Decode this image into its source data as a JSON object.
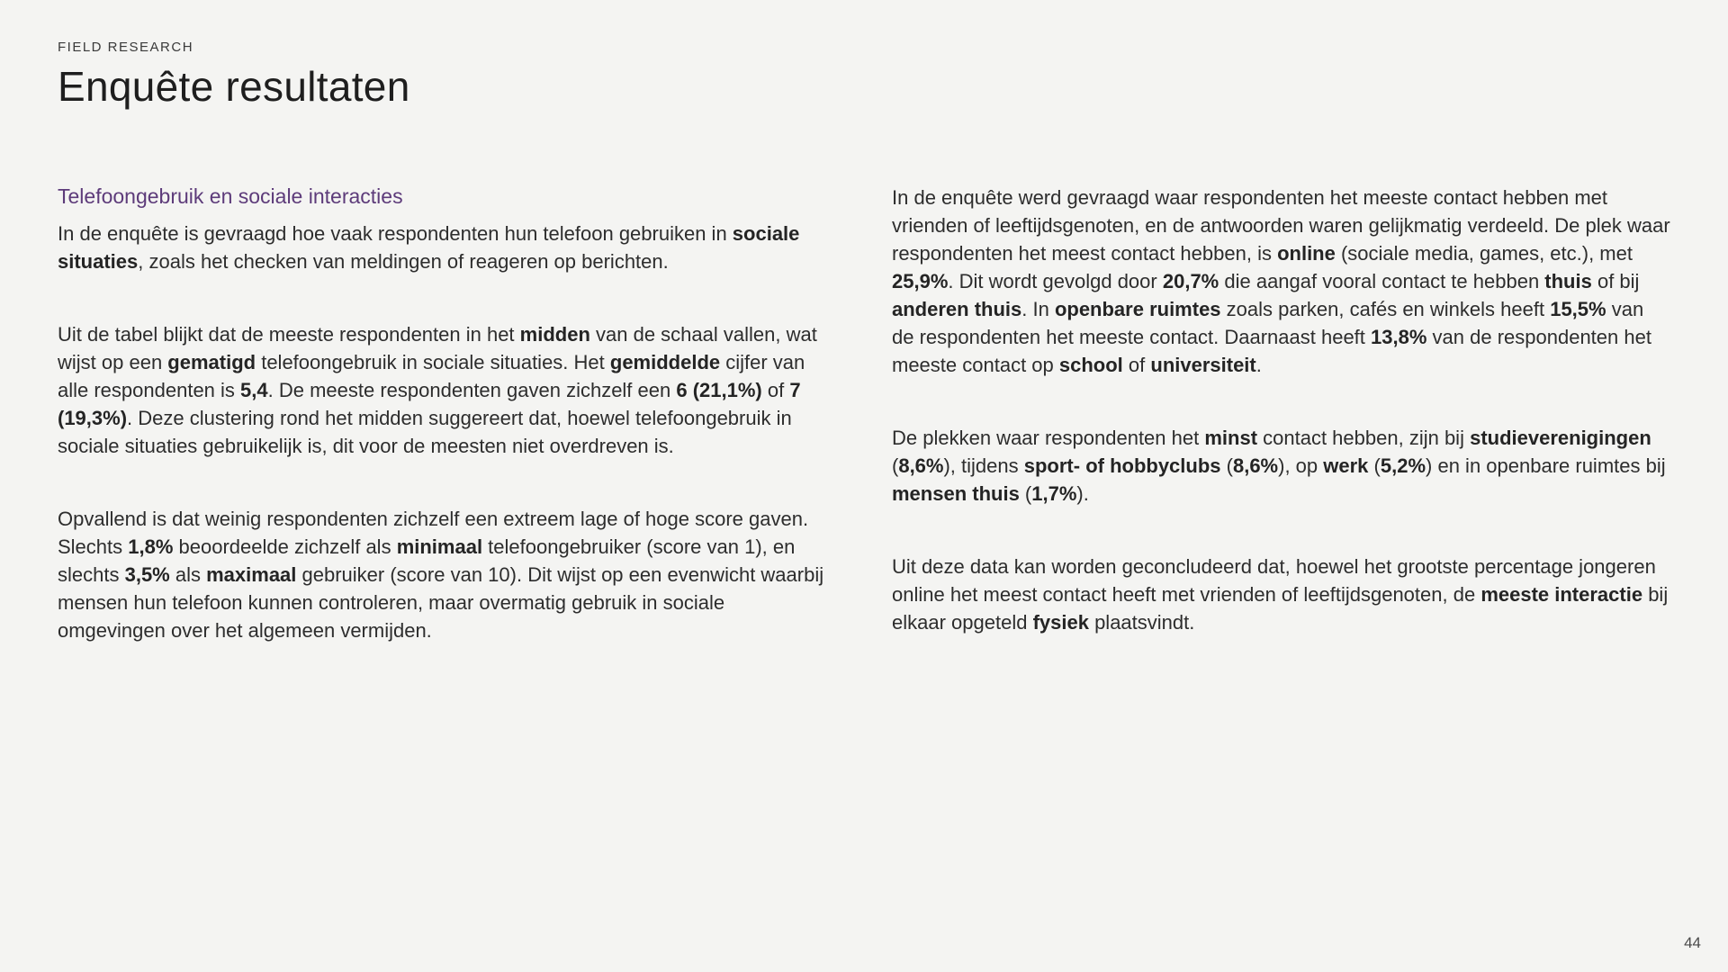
{
  "page": {
    "eyebrow": "FIELD RESEARCH",
    "title": "Enquête resultaten",
    "page_number": "44"
  },
  "colors": {
    "background": "#f4f4f2",
    "accent_purple": "#5d3b7a",
    "body_text": "#2d2d2d",
    "title_text": "#1e1e1e"
  },
  "left_column": {
    "subtitle": "Telefoongebruik en sociale interacties",
    "paragraphs": [
      [
        {
          "t": "In de enquête is gevraagd hoe vaak respondenten hun telefoon gebruiken in ",
          "b": false
        },
        {
          "t": "sociale situaties",
          "b": true
        },
        {
          "t": ", zoals het checken van meldingen of reageren op berichten.",
          "b": false
        }
      ],
      [
        {
          "t": "Uit de tabel blijkt dat de meeste respondenten in het ",
          "b": false
        },
        {
          "t": "midden",
          "b": true
        },
        {
          "t": " van de schaal vallen, wat wijst op een ",
          "b": false
        },
        {
          "t": "gematigd",
          "b": true
        },
        {
          "t": " telefoongebruik in sociale situaties. Het ",
          "b": false
        },
        {
          "t": "gemiddelde",
          "b": true
        },
        {
          "t": " cijfer van alle respondenten is ",
          "b": false
        },
        {
          "t": "5,4",
          "b": true
        },
        {
          "t": ". De meeste respondenten gaven zichzelf een ",
          "b": false
        },
        {
          "t": "6 (21,1%)",
          "b": true
        },
        {
          "t": " of ",
          "b": false
        },
        {
          "t": "7 (19,3%)",
          "b": true
        },
        {
          "t": ". Deze clustering rond het midden suggereert dat, hoewel telefoongebruik in sociale situaties gebruikelijk is, dit voor de meesten niet overdreven is.",
          "b": false
        }
      ],
      [
        {
          "t": "Opvallend is dat weinig respondenten zichzelf een extreem lage of hoge score gaven. Slechts ",
          "b": false
        },
        {
          "t": "1,8%",
          "b": true
        },
        {
          "t": " beoordeelde zichzelf als ",
          "b": false
        },
        {
          "t": "minimaal",
          "b": true
        },
        {
          "t": " telefoongebruiker (score van 1), en slechts ",
          "b": false
        },
        {
          "t": "3,5%",
          "b": true
        },
        {
          "t": " als ",
          "b": false
        },
        {
          "t": "maximaal",
          "b": true
        },
        {
          "t": " gebruiker (score van 10). Dit wijst op een evenwicht waarbij mensen hun telefoon kunnen controleren, maar overmatig gebruik in sociale omgevingen over het algemeen vermijden.",
          "b": false
        }
      ]
    ]
  },
  "right_column": {
    "paragraphs": [
      [
        {
          "t": "In de enquête werd gevraagd waar respondenten het meeste contact hebben met vrienden of leeftijdsgenoten, en de antwoorden waren gelijkmatig verdeeld. De plek waar respondenten het meest contact hebben, is ",
          "b": false
        },
        {
          "t": "online",
          "b": true
        },
        {
          "t": " (sociale media, games, etc.), met ",
          "b": false
        },
        {
          "t": "25,9%",
          "b": true
        },
        {
          "t": ". Dit wordt gevolgd door ",
          "b": false
        },
        {
          "t": "20,7%",
          "b": true
        },
        {
          "t": " die aangaf vooral contact te hebben ",
          "b": false
        },
        {
          "t": "thuis",
          "b": true
        },
        {
          "t": " of bij ",
          "b": false
        },
        {
          "t": "anderen thuis",
          "b": true
        },
        {
          "t": ". In ",
          "b": false
        },
        {
          "t": "openbare ruimtes",
          "b": true
        },
        {
          "t": " zoals parken, cafés en winkels heeft ",
          "b": false
        },
        {
          "t": "15,5%",
          "b": true
        },
        {
          "t": " van de respondenten het meeste contact. Daarnaast heeft ",
          "b": false
        },
        {
          "t": "13,8%",
          "b": true
        },
        {
          "t": " van de respondenten het meeste contact op ",
          "b": false
        },
        {
          "t": "school",
          "b": true
        },
        {
          "t": " of ",
          "b": false
        },
        {
          "t": "universiteit",
          "b": true
        },
        {
          "t": ".",
          "b": false
        }
      ],
      [
        {
          "t": "De plekken waar respondenten het ",
          "b": false
        },
        {
          "t": "minst",
          "b": true
        },
        {
          "t": " contact hebben, zijn bij ",
          "b": false
        },
        {
          "t": "studieverenigingen",
          "b": true
        },
        {
          "t": " (",
          "b": false
        },
        {
          "t": "8,6%",
          "b": true
        },
        {
          "t": "), tijdens ",
          "b": false
        },
        {
          "t": "sport- of hobbyclubs",
          "b": true
        },
        {
          "t": " (",
          "b": false
        },
        {
          "t": "8,6%",
          "b": true
        },
        {
          "t": "), op ",
          "b": false
        },
        {
          "t": "werk",
          "b": true
        },
        {
          "t": " (",
          "b": false
        },
        {
          "t": "5,2%",
          "b": true
        },
        {
          "t": ") en in openbare ruimtes bij ",
          "b": false
        },
        {
          "t": "mensen thuis",
          "b": true
        },
        {
          "t": " (",
          "b": false
        },
        {
          "t": "1,7%",
          "b": true
        },
        {
          "t": ").",
          "b": false
        }
      ],
      [
        {
          "t": "Uit deze data kan worden geconcludeerd dat, hoewel het grootste percentage jongeren online het meest contact heeft met vrienden of leeftijdsgenoten, de ",
          "b": false
        },
        {
          "t": "meeste interactie",
          "b": true
        },
        {
          "t": " bij elkaar opgeteld ",
          "b": false
        },
        {
          "t": "fysiek",
          "b": true
        },
        {
          "t": " plaatsvindt.",
          "b": false
        }
      ]
    ]
  }
}
